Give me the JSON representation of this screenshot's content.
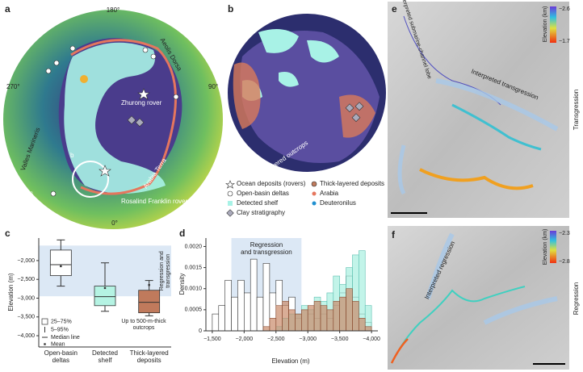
{
  "panel_labels": [
    "a",
    "b",
    "c",
    "d",
    "e",
    "f"
  ],
  "map_a": {
    "longitude_labels": [
      "180°",
      "270°",
      "90°",
      "0°"
    ],
    "labels": [
      "Aeolis Dorsa",
      "Zhurong rover",
      "Valles Marineris",
      "Hypanis",
      "Arabia Terra",
      "Rosalind Franklin rover"
    ],
    "inset_label": "b"
  },
  "map_b": {
    "annotation": "n = 14,399 layered outcrops"
  },
  "legend": {
    "items": [
      "Ocean deposits (rovers)",
      "Clay stratigraphy",
      "Arabia",
      "Deuteronilus"
    ]
  },
  "map_e": {
    "colorbar_title": "Elevation (km)",
    "colorbar_labels": [
      "−2.6",
      "−1.7"
    ],
    "annotations": [
      "Interpreted submarine-channel lobe",
      "Interpreted transgression"
    ],
    "side_label": "Transgression"
  },
  "map_f": {
    "colorbar_title": "Elevation (km)",
    "colorbar_labels": [
      "−2.3",
      "−2.8"
    ],
    "annotations": [
      "Interpreted regression"
    ],
    "side_label": "Regression"
  },
  "chart_data": [
    {
      "type": "box",
      "ylabel": "Elevation (m)",
      "categories": [
        "Open-basin deltas",
        "Detected shelf",
        "Thick-layered deposits"
      ],
      "colors": [
        "#ffffff",
        "#b5f3e3",
        "#c07a5c"
      ],
      "whisker_high": [
        -1450,
        -2060,
        -2530
      ],
      "q3": [
        -1720,
        -2680,
        -2790
      ],
      "median": [
        -2110,
        -2960,
        -3110
      ],
      "q1": [
        -2400,
        -3200,
        -3390
      ],
      "whisker_low": [
        -2680,
        -3350,
        -3470
      ],
      "mean": [
        -2150,
        -2730,
        -2650
      ],
      "ylim": [
        -4300,
        -1400
      ],
      "yticks": [
        {
          "value": -2000,
          "label": "−2,000"
        },
        {
          "value": -2500,
          "label": "−2,500"
        },
        {
          "value": -3000,
          "label": "−3,000"
        },
        {
          "value": -3500,
          "label": "−3,500"
        },
        {
          "value": -4000,
          "label": "−4,000"
        }
      ],
      "band": {
        "text": "Regression and transgression",
        "span": [
          -1600,
          -2950
        ]
      },
      "legend": [
        "25–75%",
        "5–95%",
        "Median line",
        "Mean"
      ],
      "annotation": "Up to 500-m-thick outcrops"
    },
    {
      "type": "histogram",
      "xlabel": "Elevation (m)",
      "ylabel": "Density",
      "bins": [
        -1500,
        -1600,
        -1700,
        -1800,
        -1900,
        -2000,
        -2100,
        -2200,
        -2300,
        -2400,
        -2500,
        -2600,
        -2700,
        -2800,
        -2900,
        -3000,
        -3100,
        -3200,
        -3300,
        -3400,
        -3500,
        -3600,
        -3700,
        -3800,
        -3900,
        -4000
      ],
      "series": [
        {
          "name": "Open-basin deltas",
          "color": "#ffffff",
          "values": [
            0.0004,
            0.0006,
            0.0012,
            0.0008,
            0.0012,
            0.0009,
            0.0017,
            0.0008,
            0.0016,
            0.0009,
            0.0012,
            0.0006,
            0.0008,
            0.0003,
            0.0005,
            0.0004,
            0.0003,
            0.0004,
            0.0003,
            0.0006,
            0.0009,
            0.0013,
            0.0008,
            0.0004,
            0.0002
          ]
        },
        {
          "name": "Detected shelf",
          "color": "#a8f0e0",
          "values": [
            0,
            0,
            0,
            0,
            0,
            0,
            0,
            0,
            0,
            0,
            0.0001,
            0.0003,
            0.0004,
            0.0004,
            0.0006,
            0.0005,
            0.0008,
            0.0007,
            0.0009,
            0.0013,
            0.0011,
            0.0015,
            0.0018,
            0.0019,
            0.0006
          ]
        },
        {
          "name": "Thick-layered deposits",
          "color": "#c98a6a",
          "values": [
            0,
            0,
            0,
            0,
            0,
            0,
            0,
            0,
            0.0001,
            0.0003,
            0.0006,
            0.0007,
            0.0005,
            0.0004,
            0.0005,
            0.0006,
            0.0007,
            0.0006,
            0.0005,
            0.0007,
            0.0008,
            0.001,
            0.0007,
            0.0003,
            0.0001
          ]
        }
      ],
      "xlim": [
        -1400,
        -4100
      ],
      "xticks": [
        {
          "value": -1500,
          "label": "−1,500"
        },
        {
          "value": -2000,
          "label": "−2,000"
        },
        {
          "value": -2500,
          "label": "−2,500"
        },
        {
          "value": -3000,
          "label": "−3,000"
        },
        {
          "value": -3500,
          "label": "−3,500"
        },
        {
          "value": -4000,
          "label": "−4,000"
        }
      ],
      "ylim": [
        0,
        0.0022
      ],
      "yticks": [
        0,
        0.0005,
        {
          "value": 0.001,
          "label": "0.0010"
        },
        0.0015,
        {
          "value": 0.002,
          "label": "0.0020"
        }
      ],
      "band": {
        "text": "Regression and transgression",
        "span": [
          -1800,
          -2900
        ]
      }
    }
  ]
}
